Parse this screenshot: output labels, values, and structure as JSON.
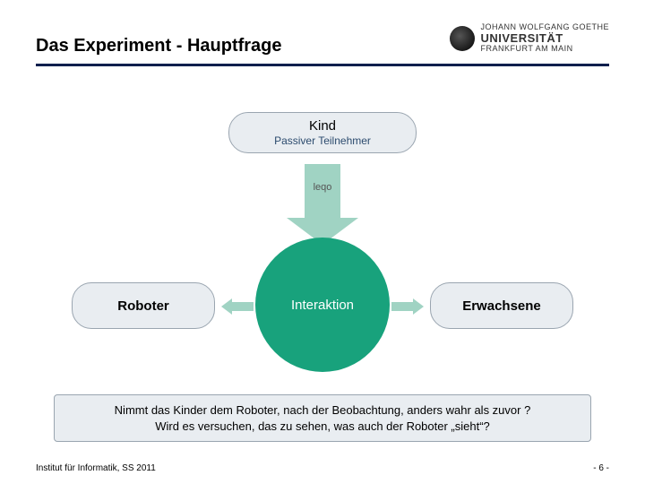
{
  "header": {
    "title": "Das Experiment - Hauptfrage",
    "logo_top": "JOHANN WOLFGANG GOETHE",
    "logo_uni": "UNIVERSITÄT",
    "logo_sub": "FRANKFURT AM MAIN"
  },
  "diagram": {
    "kind_title": "Kind",
    "kind_sub": "Passiver Teilnehmer",
    "arrow_label": "leqo",
    "circle_label": "Interaktion",
    "left_label": "Roboter",
    "right_label": "Erwachsene",
    "colors": {
      "pill_bg": "#e9edf1",
      "pill_border": "#9aa5b0",
      "circle_bg": "#18a27c",
      "arrow_bg": "#a0d3c3",
      "underline": "#0a1f4d"
    }
  },
  "question": {
    "line1": "Nimmt das Kinder dem Roboter, nach der Beobachtung, anders wahr als zuvor ?",
    "line2": "Wird es versuchen, das zu sehen, was auch der Roboter „sieht“?"
  },
  "footer": {
    "left": "Institut für Informatik, SS 2011",
    "right": "- 6 -"
  }
}
